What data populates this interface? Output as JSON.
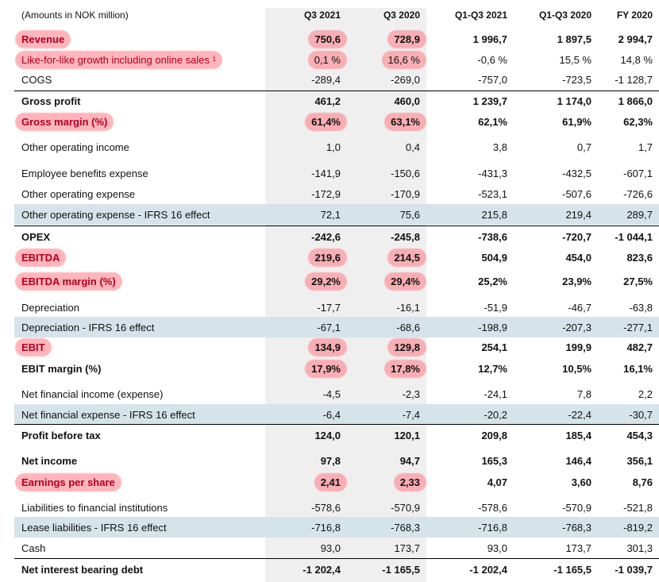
{
  "header": {
    "label": "(Amounts in NOK million)",
    "columns": [
      "Q3 2021",
      "Q3 2020",
      "Q1-Q3 2021",
      "Q1-Q3 2020",
      "FY 2020"
    ]
  },
  "rows": [
    {
      "label": "Revenue",
      "values": [
        "750,6",
        "728,9",
        "1 996,7",
        "1 897,5",
        "2 994,7"
      ]
    },
    {
      "label": "Like-for-like growth including online sales ¹",
      "values": [
        "0,1 %",
        "16,6 %",
        "-0,6 %",
        "15,5 %",
        "14,8 %"
      ]
    },
    {
      "label": "COGS",
      "values": [
        "-289,4",
        "-269,0",
        "-757,0",
        "-723,5",
        "-1 128,7"
      ]
    },
    {
      "label": "Gross profit",
      "values": [
        "461,2",
        "460,0",
        "1 239,7",
        "1 174,0",
        "1 866,0"
      ]
    },
    {
      "label": "Gross margin (%)",
      "values": [
        "61,4%",
        "63,1%",
        "62,1%",
        "61,9%",
        "62,3%"
      ]
    },
    {
      "label": "Other operating income",
      "values": [
        "1,0",
        "0,4",
        "3,8",
        "0,7",
        "1,7"
      ]
    },
    {
      "label": "Employee benefits expense",
      "values": [
        "-141,9",
        "-150,6",
        "-431,3",
        "-432,5",
        "-607,1"
      ]
    },
    {
      "label": "Other operating expense",
      "values": [
        "-172,9",
        "-170,9",
        "-523,1",
        "-507,6",
        "-726,6"
      ]
    },
    {
      "label": "Other operating expense - IFRS 16 effect",
      "values": [
        "72,1",
        "75,6",
        "215,8",
        "219,4",
        "289,7"
      ]
    },
    {
      "label": "OPEX",
      "values": [
        "-242,6",
        "-245,8",
        "-738,6",
        "-720,7",
        "-1 044,1"
      ]
    },
    {
      "label": "EBITDA",
      "values": [
        "219,6",
        "214,5",
        "504,9",
        "454,0",
        "823,6"
      ]
    },
    {
      "label": "EBITDA margin (%)",
      "values": [
        "29,2%",
        "29,4%",
        "25,2%",
        "23,9%",
        "27,5%"
      ]
    },
    {
      "label": "Depreciation",
      "values": [
        "-17,7",
        "-16,1",
        "-51,9",
        "-46,7",
        "-63,8"
      ]
    },
    {
      "label": "Depreciation - IFRS 16 effect",
      "values": [
        "-67,1",
        "-68,6",
        "-198,9",
        "-207,3",
        "-277,1"
      ]
    },
    {
      "label": "EBIT",
      "values": [
        "134,9",
        "129,8",
        "254,1",
        "199,9",
        "482,7"
      ]
    },
    {
      "label": "EBIT margin (%)",
      "values": [
        "17,9%",
        "17,8%",
        "12,7%",
        "10,5%",
        "16,1%"
      ]
    },
    {
      "label": "Net financial income (expense)",
      "values": [
        "-4,5",
        "-2,3",
        "-24,1",
        "7,8",
        "2,2"
      ]
    },
    {
      "label": "Net financial expense - IFRS 16 effect",
      "values": [
        "-6,4",
        "-7,4",
        "-20,2",
        "-22,4",
        "-30,7"
      ]
    },
    {
      "label": "Profit before tax",
      "values": [
        "124,0",
        "120,1",
        "209,8",
        "185,4",
        "454,3"
      ]
    },
    {
      "label": "Net income",
      "values": [
        "97,8",
        "94,7",
        "165,3",
        "146,4",
        "356,1"
      ]
    },
    {
      "label": "Earnings per share",
      "values": [
        "2,41",
        "2,33",
        "4,07",
        "3,60",
        "8,76"
      ]
    },
    {
      "label": "Liabilities to financial institutions",
      "values": [
        "-578,6",
        "-570,9",
        "-578,6",
        "-570,9",
        "-521,8"
      ]
    },
    {
      "label": "Lease liabilities - IFRS 16 effect",
      "values": [
        "-716,8",
        "-768,3",
        "-716,8",
        "-768,3",
        "-819,2"
      ]
    },
    {
      "label": "Cash",
      "values": [
        "93,0",
        "173,7",
        "93,0",
        "173,7",
        "301,3"
      ]
    },
    {
      "label": "Net interest bearing debt",
      "values": [
        "-1 202,4",
        "-1 165,5",
        "-1 202,4",
        "-1 165,5",
        "-1 039,7"
      ]
    }
  ],
  "colors": {
    "highlight": "#ff7882",
    "highlight_text": "#b00020",
    "shade": "#d5e4ea",
    "column_shade": "#efefef"
  }
}
